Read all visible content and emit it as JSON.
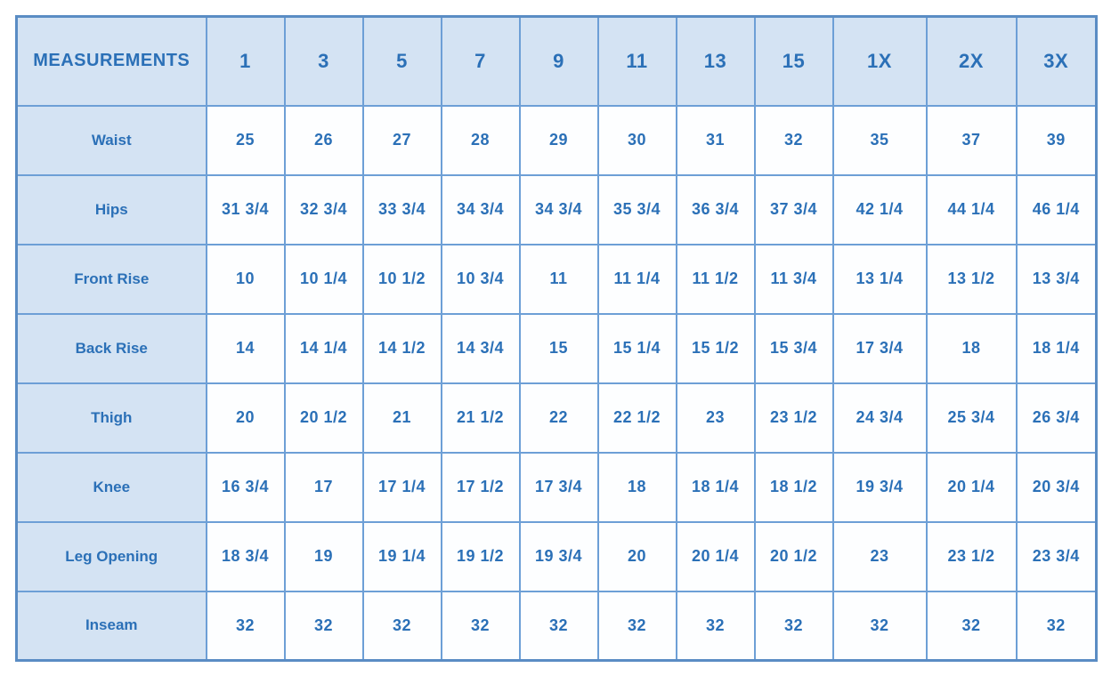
{
  "chart_data": {
    "type": "table",
    "title": "MEASUREMENTS",
    "corner_header": "MEASUREMENTS",
    "columns": [
      "1",
      "3",
      "5",
      "7",
      "9",
      "11",
      "13",
      "15",
      "1X",
      "2X",
      "3X"
    ],
    "rows": [
      {
        "label": "Waist",
        "values": [
          "25",
          "26",
          "27",
          "28",
          "29",
          "30",
          "31",
          "32",
          "35",
          "37",
          "39"
        ]
      },
      {
        "label": "Hips",
        "values": [
          "31 3/4",
          "32 3/4",
          "33 3/4",
          "34 3/4",
          "34 3/4",
          "35 3/4",
          "36 3/4",
          "37 3/4",
          "42 1/4",
          "44 1/4",
          "46 1/4"
        ]
      },
      {
        "label": "Front Rise",
        "values": [
          "10",
          "10 1/4",
          "10 1/2",
          "10 3/4",
          "11",
          "11 1/4",
          "11 1/2",
          "11 3/4",
          "13 1/4",
          "13 1/2",
          "13 3/4"
        ]
      },
      {
        "label": "Back Rise",
        "values": [
          "14",
          "14 1/4",
          "14 1/2",
          "14 3/4",
          "15",
          "15 1/4",
          "15 1/2",
          "15 3/4",
          "17 3/4",
          "18",
          "18 1/4"
        ]
      },
      {
        "label": "Thigh",
        "values": [
          "20",
          "20 1/2",
          "21",
          "21 1/2",
          "22",
          "22 1/2",
          "23",
          "23 1/2",
          "24 3/4",
          "25 3/4",
          "26 3/4"
        ]
      },
      {
        "label": "Knee",
        "values": [
          "16 3/4",
          "17",
          "17 1/4",
          "17 1/2",
          "17 3/4",
          "18",
          "18 1/4",
          "18 1/2",
          "19 3/4",
          "20 1/4",
          "20 3/4"
        ]
      },
      {
        "label": "Leg Opening",
        "values": [
          "18 3/4",
          "19",
          "19 1/4",
          "19 1/2",
          "19 3/4",
          "20",
          "20 1/4",
          "20 1/2",
          "23",
          "23 1/2",
          "23 3/4"
        ]
      },
      {
        "label": "Inseam",
        "values": [
          "32",
          "32",
          "32",
          "32",
          "32",
          "32",
          "32",
          "32",
          "32",
          "32",
          "32"
        ]
      }
    ],
    "layout_hints": {
      "legend": "none",
      "grid": "on",
      "header_row_highlighted": true,
      "label_column_highlighted": true
    },
    "colors": {
      "header_background": "#d4e3f3",
      "cell_background": "#fdfeff",
      "grid_border": "#6d9fd6",
      "outer_border": "#5a8cc4",
      "text": "#2b70b7"
    }
  }
}
